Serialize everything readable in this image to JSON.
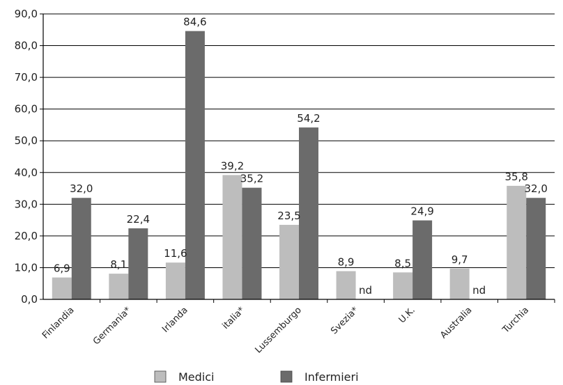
{
  "chart_data": {
    "type": "bar",
    "categories": [
      "Finlandia",
      "Germania*",
      "Irlanda",
      "italia*",
      "Lussemburgo",
      "Svezia*",
      "U.K.",
      "Australia",
      "Turchia"
    ],
    "series": [
      {
        "name": "Medici",
        "values": [
          6.9,
          8.1,
          11.6,
          39.2,
          23.5,
          8.9,
          8.5,
          9.7,
          35.8
        ],
        "labels": [
          "6,9",
          "8,1",
          "11,6",
          "39,2",
          "23,5",
          "8,9",
          "8,5",
          "9,7",
          "35,8"
        ],
        "color": "#bdbdbd"
      },
      {
        "name": "Infermieri",
        "values": [
          32.0,
          22.4,
          84.6,
          35.2,
          54.2,
          null,
          24.9,
          null,
          32.0
        ],
        "labels": [
          "32,0",
          "22,4",
          "84,6",
          "35,2",
          "54,2",
          "nd",
          "24,9",
          "nd",
          "32,0"
        ],
        "color": "#6b6b6b"
      }
    ],
    "yticks": [
      "0,0",
      "10,0",
      "20,0",
      "30,0",
      "40,0",
      "50,0",
      "60,0",
      "70,0",
      "80,0",
      "90,0"
    ],
    "ylim": [
      0,
      90
    ],
    "grid": true,
    "legend": "bottom"
  }
}
